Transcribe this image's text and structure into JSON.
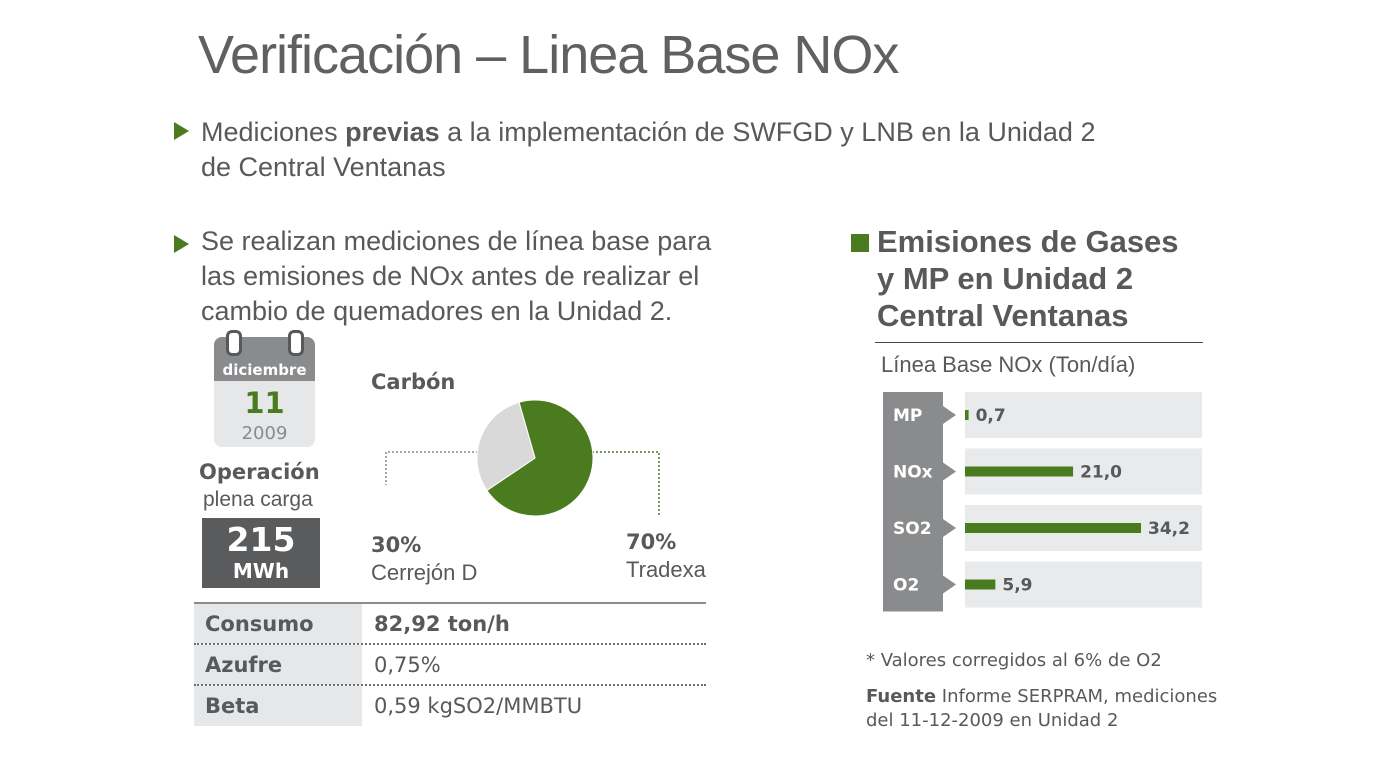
{
  "title": "Verificación – Linea Base NOx",
  "bullet1": {
    "pre": "Mediciones ",
    "bold": "previas",
    "post": " a la implementación de SWFGD y LNB en la Unidad 2",
    "line2": "de Central Ventanas"
  },
  "bullet2": {
    "line1": "Se realizan mediciones de línea base para",
    "line2": "las emisiones de NOx antes de realizar el",
    "line3": "cambio de quemadores en la Unidad 2."
  },
  "calendar": {
    "month": "diciembre",
    "day": "11",
    "year": "2009"
  },
  "operation": {
    "label": "Operación",
    "sub": "plena carga",
    "value": "215",
    "unit": "MWh"
  },
  "table": [
    {
      "key": "Consumo",
      "value": "82,92 ton/h",
      "bold": true
    },
    {
      "key": "Azufre",
      "value": "0,75%",
      "bold": false
    },
    {
      "key": "Beta",
      "value": "0,59 kgSO2/MMBTU",
      "bold": false
    }
  ],
  "section": {
    "line1": "Emisiones de Gases",
    "line2": "y MP en Unidad 2",
    "line3": "Central Ventanas",
    "subtitle": "Línea Base NOx (Ton/día)"
  },
  "notes": {
    "footnote": "* Valores corregidos al 6% de O2",
    "source_label": "Fuente",
    "source_text": " Informe SERPRAM, mediciones",
    "source_line2": "del 11-12-2009 en Unidad 2"
  },
  "colors": {
    "accent": "#4b7b1f",
    "gray_dark": "#5a5b5d",
    "gray_light": "#e6e7e8",
    "text": "#58595b"
  },
  "chart_data": [
    {
      "type": "pie",
      "title": "Carbón",
      "slices": [
        {
          "label": "Tradexa",
          "value": 70,
          "display": "70%",
          "color": "#4b7b1f"
        },
        {
          "label": "Cerrejón D",
          "value": 30,
          "display": "30%",
          "color": "#d9d9da"
        }
      ]
    },
    {
      "type": "bar",
      "orientation": "horizontal",
      "title": "Línea Base NOx (Ton/día)",
      "categories": [
        "MP",
        "NOx",
        "SO2",
        "O2"
      ],
      "values": [
        0.7,
        21.0,
        34.2,
        5.9
      ],
      "value_labels": [
        "0,7",
        "21,0",
        "34,2",
        "5,9"
      ],
      "xlim": [
        0,
        34.2
      ],
      "color": "#4b7b1f"
    }
  ]
}
